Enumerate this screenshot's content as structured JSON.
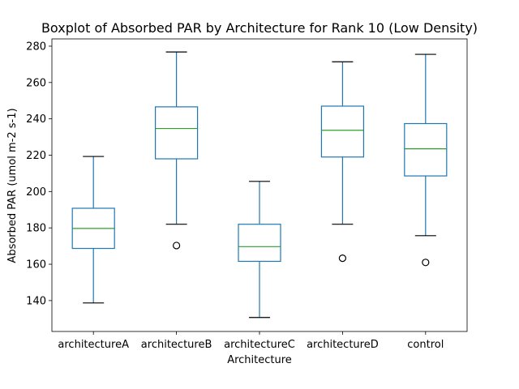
{
  "chart_data": {
    "type": "boxplot",
    "title": "Boxplot of Absorbed PAR by Architecture for Rank 10 (Low Density)",
    "xlabel": "Architecture",
    "ylabel": "Absorbed PAR (umol m-2 s-1)",
    "ylim": [
      123,
      284
    ],
    "yticks": [
      140,
      160,
      180,
      200,
      220,
      240,
      260,
      280
    ],
    "grid": false,
    "categories": [
      "architectureA",
      "architectureB",
      "architectureC",
      "architectureD",
      "control"
    ],
    "boxes": [
      {
        "category": "architectureA",
        "whisker_low": 138.7,
        "q1": 168.7,
        "median": 179.7,
        "q3": 190.8,
        "whisker_high": 219.3,
        "outliers": []
      },
      {
        "category": "architectureB",
        "whisker_low": 182.0,
        "q1": 218.0,
        "median": 234.7,
        "q3": 246.6,
        "whisker_high": 276.8,
        "outliers": [
          170.3
        ]
      },
      {
        "category": "architectureC",
        "whisker_low": 130.7,
        "q1": 161.6,
        "median": 169.7,
        "q3": 182.0,
        "whisker_high": 205.6,
        "outliers": []
      },
      {
        "category": "architectureD",
        "whisker_low": 182.0,
        "q1": 219.0,
        "median": 233.7,
        "q3": 247.0,
        "whisker_high": 271.4,
        "outliers": [
          163.3
        ]
      },
      {
        "category": "control",
        "whisker_low": 175.7,
        "q1": 208.6,
        "median": 223.5,
        "q3": 237.4,
        "whisker_high": 275.5,
        "outliers": [
          161.0
        ]
      }
    ],
    "colors": {
      "box": "#1f77b4",
      "median": "#2ca02c",
      "cap": "#000000",
      "outlier": "#000000",
      "frame": "#000000"
    }
  }
}
